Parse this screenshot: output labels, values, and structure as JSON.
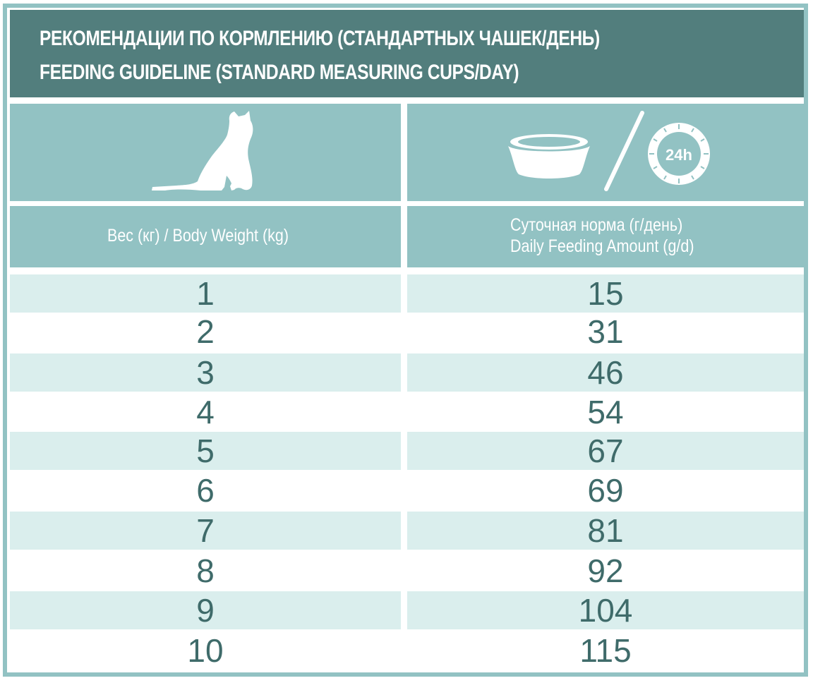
{
  "title": {
    "ru": "РЕКОМЕНДАЦИИ ПО КОРМЛЕНИЮ (СТАНДАРТНЫХ ЧАШЕК/ДЕНЬ)",
    "en": "FEEDING GUIDELINE (STANDARD MEASURING CUPS/DAY)"
  },
  "icons": {
    "left": "cat-icon",
    "right_bowl": "bowl-icon",
    "right_clock": "clock-24h-icon",
    "clock_label": "24h"
  },
  "columns": {
    "weight": "Вес (кг) / Body Weight (kg)",
    "amount_ru": "Суточная норма (г/день)",
    "amount_en": "Daily Feeding Amount (g/d)"
  },
  "rows": [
    {
      "weight": "1",
      "amount": "15"
    },
    {
      "weight": "2",
      "amount": "31"
    },
    {
      "weight": "3",
      "amount": "46"
    },
    {
      "weight": "4",
      "amount": "54"
    },
    {
      "weight": "5",
      "amount": "67"
    },
    {
      "weight": "6",
      "amount": "69"
    },
    {
      "weight": "7",
      "amount": "81"
    },
    {
      "weight": "8",
      "amount": "92"
    },
    {
      "weight": "9",
      "amount": "104"
    },
    {
      "weight": "10",
      "amount": "115"
    }
  ],
  "colors": {
    "title_bg": "#527e7d",
    "header_bg": "#92c2c3",
    "row_shade": "#daeeed",
    "number_text": "#3f6b6a"
  }
}
